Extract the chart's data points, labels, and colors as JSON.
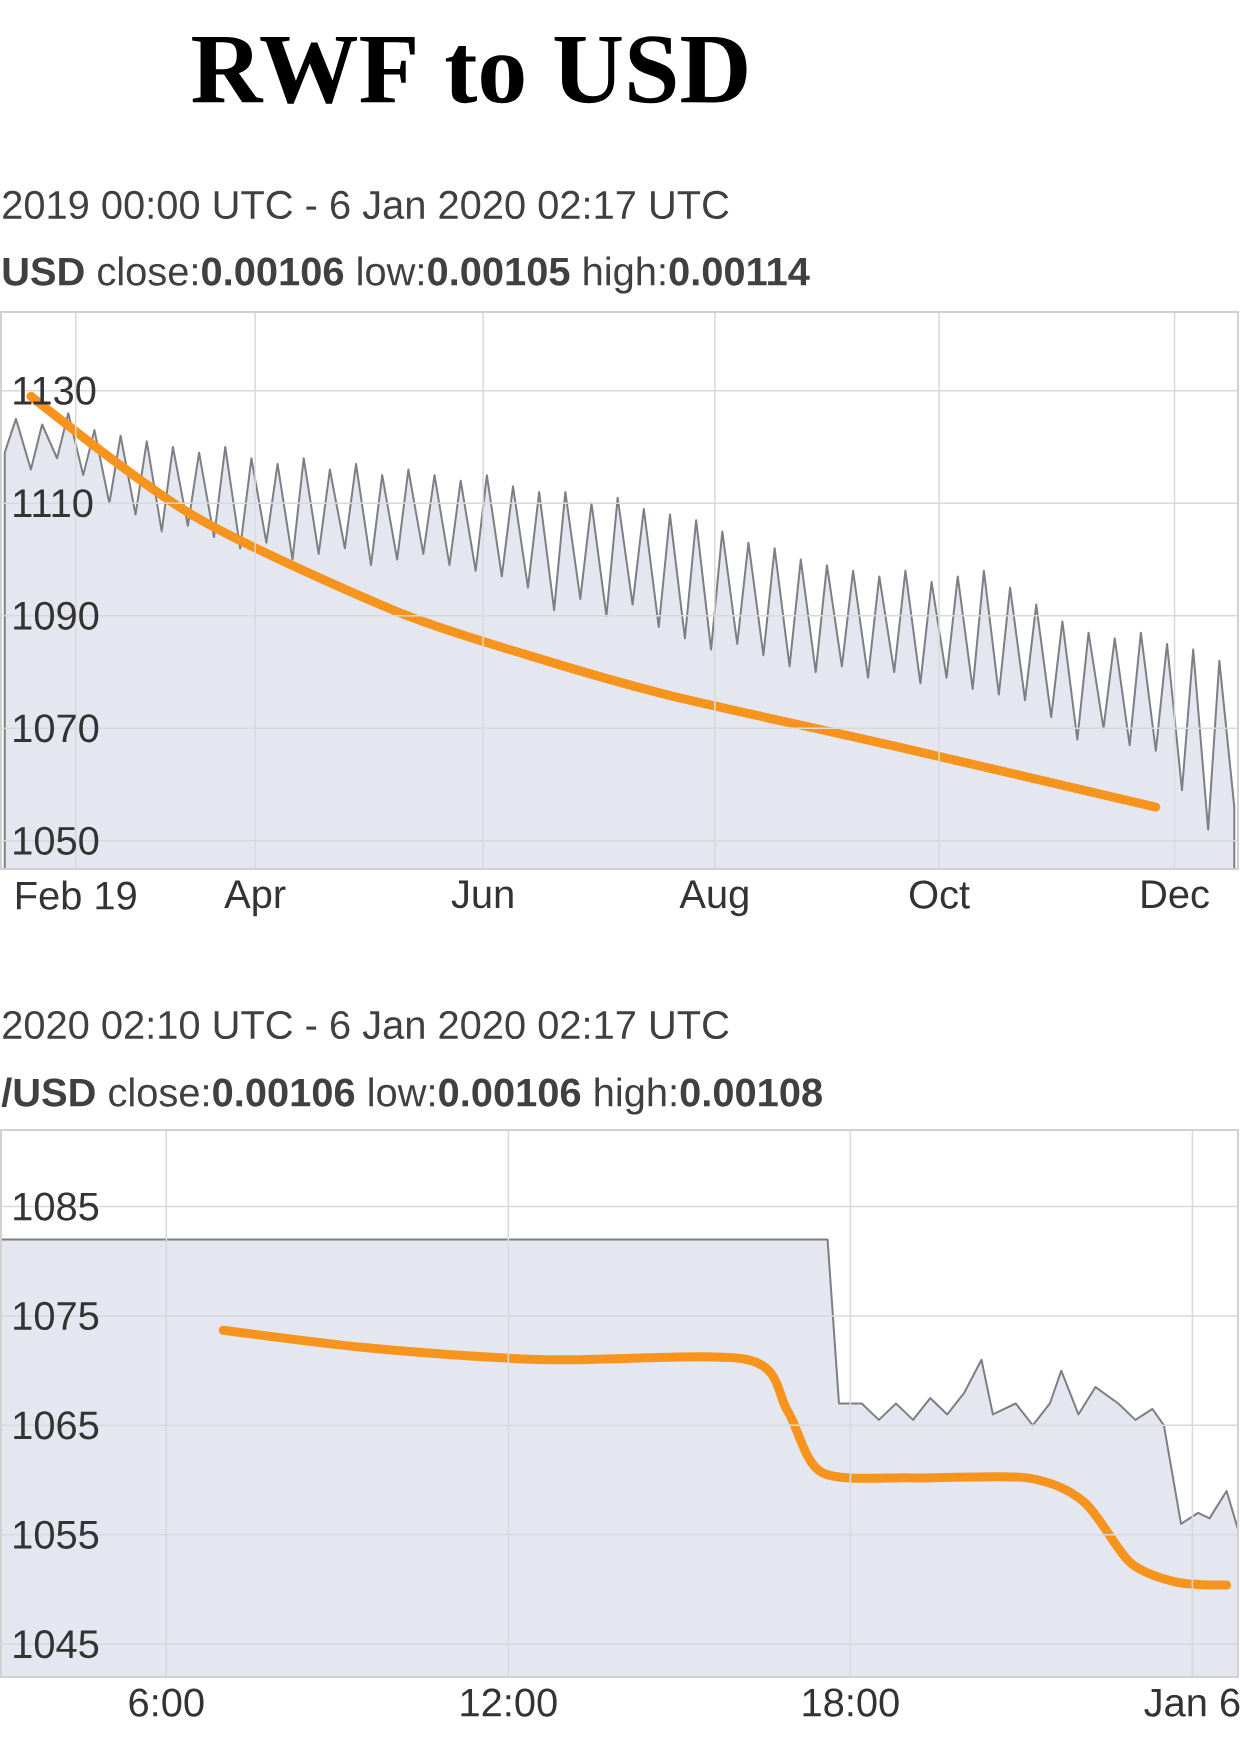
{
  "chart_data": [
    {
      "type": "area",
      "title": "RWF to USD",
      "subtitle": "2019 00:00 UTC - 6 Jan 2020 02:17 UTC",
      "annotations": [
        "**USD** close:**0.00106** low:**0.00105** high:**0.00114**"
      ],
      "grid": true,
      "marker": "none",
      "xlim": [
        "2019-02-07",
        "2020-01-04"
      ],
      "ylim": [
        1045,
        1144
      ],
      "xticks": [
        {
          "value": "2019-02-27",
          "label": "Feb 19"
        },
        {
          "value": "2019-04-16",
          "label": "Apr"
        },
        {
          "value": "2019-06-16",
          "label": "Jun"
        },
        {
          "value": "2019-08-17",
          "label": "Aug"
        },
        {
          "value": "2019-10-16",
          "label": "Oct"
        },
        {
          "value": "2019-12-18",
          "label": "Dec"
        }
      ],
      "yticks": [
        1050,
        1070,
        1090,
        1110,
        1130
      ],
      "series": [
        {
          "color": "#e4e7f0",
          "x": [
            "2019-02-08",
            "2019-02-11",
            "2019-02-15",
            "2019-02-18",
            "2019-02-22",
            "2019-02-25",
            "2019-03-01",
            "2019-03-04",
            "2019-03-08",
            "2019-03-11",
            "2019-03-15",
            "2019-03-18",
            "2019-03-22",
            "2019-03-25",
            "2019-03-29",
            "2019-04-01",
            "2019-04-05",
            "2019-04-08",
            "2019-04-12",
            "2019-04-15",
            "2019-04-19",
            "2019-04-22",
            "2019-04-26",
            "2019-04-29",
            "2019-05-03",
            "2019-05-06",
            "2019-05-10",
            "2019-05-13",
            "2019-05-17",
            "2019-05-20",
            "2019-05-24",
            "2019-05-27",
            "2019-05-31",
            "2019-06-03",
            "2019-06-07",
            "2019-06-10",
            "2019-06-14",
            "2019-06-17",
            "2019-06-21",
            "2019-06-24",
            "2019-06-28",
            "2019-07-01",
            "2019-07-05",
            "2019-07-08",
            "2019-07-12",
            "2019-07-15",
            "2019-07-19",
            "2019-07-22",
            "2019-07-26",
            "2019-07-29",
            "2019-08-02",
            "2019-08-05",
            "2019-08-09",
            "2019-08-12",
            "2019-08-16",
            "2019-08-19",
            "2019-08-23",
            "2019-08-26",
            "2019-08-30",
            "2019-09-02",
            "2019-09-06",
            "2019-09-09",
            "2019-09-13",
            "2019-09-16",
            "2019-09-20",
            "2019-09-23",
            "2019-09-27",
            "2019-09-30",
            "2019-10-04",
            "2019-10-07",
            "2019-10-11",
            "2019-10-14",
            "2019-10-18",
            "2019-10-21",
            "2019-10-25",
            "2019-10-28",
            "2019-11-01",
            "2019-11-04",
            "2019-11-08",
            "2019-11-11",
            "2019-11-15",
            "2019-11-18",
            "2019-11-22",
            "2019-11-25",
            "2019-11-29",
            "2019-12-02",
            "2019-12-06",
            "2019-12-09",
            "2019-12-13",
            "2019-12-16",
            "2019-12-20",
            "2019-12-23",
            "2019-12-27",
            "2019-12-30",
            "2020-01-03"
          ],
          "values": [
            1119,
            1125,
            1116,
            1124,
            1118,
            1126,
            1115,
            1123,
            1110,
            1122,
            1108,
            1121,
            1105,
            1120,
            1106,
            1119,
            1104,
            1120,
            1102,
            1118,
            1103,
            1117,
            1100,
            1118,
            1101,
            1116,
            1102,
            1117,
            1099,
            1115,
            1100,
            1116,
            1101,
            1115,
            1099,
            1114,
            1098,
            1115,
            1097,
            1113,
            1095,
            1112,
            1091,
            1112,
            1093,
            1110,
            1090,
            1111,
            1092,
            1109,
            1088,
            1108,
            1086,
            1107,
            1084,
            1105,
            1085,
            1103,
            1083,
            1102,
            1081,
            1100,
            1080,
            1099,
            1081,
            1098,
            1079,
            1097,
            1080,
            1098,
            1078,
            1096,
            1079,
            1097,
            1077,
            1098,
            1076,
            1095,
            1075,
            1092,
            1072,
            1089,
            1068,
            1087,
            1070,
            1086,
            1067,
            1087,
            1066,
            1085,
            1059,
            1084,
            1052,
            1082,
            1056
          ]
        },
        {
          "type": "line",
          "color": "#f7941d",
          "x": [
            "2019-02-15",
            "2019-03-30",
            "2019-05-23",
            "2019-06-28",
            "2019-08-04",
            "2019-10-03",
            "2019-12-13"
          ],
          "values": [
            1129,
            1108,
            1091,
            1083,
            1076,
            1067,
            1056
          ]
        }
      ]
    },
    {
      "type": "area",
      "subtitle": "2020 02:10 UTC - 6 Jan 2020 02:17 UTC",
      "annotations": [
        "**/USD** close:**0.00106** low:**0.00106** high:**0.00108**"
      ],
      "grid": true,
      "marker": "none",
      "xlim": [
        3.1,
        24.8
      ],
      "ylim": [
        1042,
        1092
      ],
      "xticks": [
        {
          "value": 6,
          "label": "6:00"
        },
        {
          "value": 12,
          "label": "12:00"
        },
        {
          "value": 18,
          "label": "18:00"
        },
        {
          "value": 24,
          "label": "Jan 6"
        }
      ],
      "yticks": [
        1045,
        1055,
        1065,
        1075,
        1085
      ],
      "series": [
        {
          "color": "#e4e7f0",
          "x": [
            3.1,
            17.6,
            17.8,
            18.2,
            18.5,
            18.8,
            19.1,
            19.4,
            19.7,
            20.0,
            20.3,
            20.5,
            20.9,
            21.2,
            21.5,
            21.7,
            22.0,
            22.3,
            22.7,
            23.0,
            23.3,
            23.5,
            23.8,
            24.1,
            24.3,
            24.6,
            24.8
          ],
          "values": [
            1082,
            1082,
            1067,
            1067,
            1065.5,
            1067,
            1065.5,
            1067.5,
            1066,
            1068,
            1071,
            1066,
            1067,
            1065,
            1067,
            1070,
            1066,
            1068.5,
            1067,
            1065.5,
            1066.5,
            1065,
            1056,
            1057,
            1056.5,
            1059,
            1055.5
          ]
        },
        {
          "type": "line",
          "color": "#f7941d",
          "x": [
            7.0,
            9.7,
            12.7,
            16.2,
            16.9,
            17.5,
            19.1,
            21.1,
            22.1,
            22.9,
            23.7,
            24.6
          ],
          "values": [
            1073.7,
            1072,
            1071,
            1071,
            1066.3,
            1060.7,
            1060.2,
            1060.2,
            1058,
            1052.5,
            1050.7,
            1050.4
          ]
        }
      ]
    }
  ]
}
